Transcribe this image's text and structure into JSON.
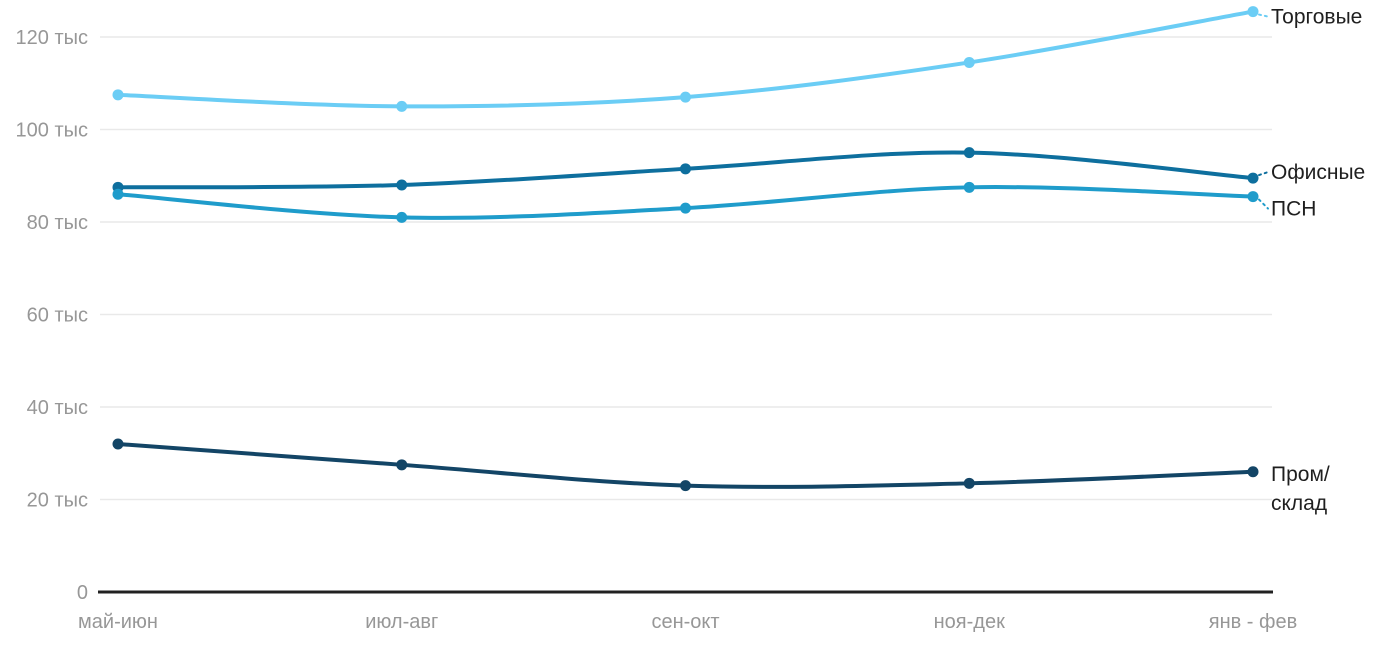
{
  "chart_data": {
    "type": "line",
    "title": "",
    "categories": [
      "май-июн",
      "июл-авг",
      "сен-окт",
      "ноя-дек",
      "янв - фев"
    ],
    "values_unit": "тыс",
    "ylim": [
      0,
      128
    ],
    "grid": "horizontal",
    "legend_position": "right-edge-labels",
    "y_ticks": [
      {
        "value": 0,
        "label": "0"
      },
      {
        "value": 20,
        "label": "20 тыс"
      },
      {
        "value": 40,
        "label": "40 тыс"
      },
      {
        "value": 60,
        "label": "60 тыс"
      },
      {
        "value": 80,
        "label": "80 тыс"
      },
      {
        "value": 100,
        "label": "100 тыс"
      },
      {
        "value": 120,
        "label": "120 тыс"
      }
    ],
    "series": [
      {
        "name": "Торговые",
        "label_lines": [
          "Торговые"
        ],
        "color": "#6bcdf5",
        "values": [
          107.5,
          105,
          107,
          114.5,
          125.5
        ]
      },
      {
        "name": "Офисные",
        "label_lines": [
          "Офисные"
        ],
        "color": "#0e6f9e",
        "values": [
          87.5,
          88,
          91.5,
          95,
          89.5
        ]
      },
      {
        "name": "ПСН",
        "label_lines": [
          "ПСН"
        ],
        "color": "#1f9ccb",
        "values": [
          86,
          81,
          83,
          87.5,
          85.5
        ]
      },
      {
        "name": "Пром/склад",
        "label_lines": [
          "Пром/",
          "склад"
        ],
        "color": "#134566",
        "values": [
          32,
          27.5,
          23,
          23.5,
          26
        ]
      }
    ],
    "colors": {
      "axis_line": "#212121",
      "gridline": "#e9e9e9",
      "tick_label": "#979797",
      "series_label": "#1f1f1f",
      "background": "#ffffff"
    }
  }
}
